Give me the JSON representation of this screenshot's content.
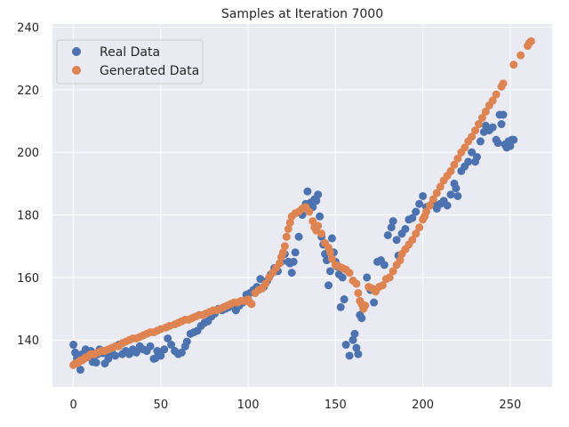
{
  "chart_data": {
    "type": "scatter",
    "title": "Samples at Iteration 7000",
    "xlabel": "",
    "ylabel": "",
    "xlim": [
      -12,
      274
    ],
    "ylim": [
      125,
      241
    ],
    "xticks": [
      0,
      50,
      100,
      150,
      200,
      250
    ],
    "yticks": [
      140,
      160,
      180,
      200,
      220,
      240
    ],
    "grid": true,
    "legend_position": "top-left",
    "series": [
      {
        "name": "Real Data",
        "color": "#4c72b0",
        "points": [
          [
            0,
            138.5
          ],
          [
            1,
            136.0
          ],
          [
            2,
            134.2
          ],
          [
            3,
            133.0
          ],
          [
            4,
            130.5
          ],
          [
            5,
            135.5
          ],
          [
            6,
            134.0
          ],
          [
            7,
            137.0
          ],
          [
            8,
            136.0
          ],
          [
            9,
            134.5
          ],
          [
            10,
            136.5
          ],
          [
            11,
            133.0
          ],
          [
            12,
            135.0
          ],
          [
            13,
            132.8
          ],
          [
            14,
            135.5
          ],
          [
            15,
            137.0
          ],
          [
            16,
            136.5
          ],
          [
            17,
            135.8
          ],
          [
            18,
            132.5
          ],
          [
            19,
            136.0
          ],
          [
            20,
            134.0
          ],
          [
            22,
            136.0
          ],
          [
            24,
            135.0
          ],
          [
            26,
            138.5
          ],
          [
            28,
            135.5
          ],
          [
            30,
            136.5
          ],
          [
            32,
            135.5
          ],
          [
            34,
            137.0
          ],
          [
            36,
            136.0
          ],
          [
            38,
            138.0
          ],
          [
            40,
            137.0
          ],
          [
            42,
            136.5
          ],
          [
            44,
            138.0
          ],
          [
            46,
            134.0
          ],
          [
            47,
            134.2
          ],
          [
            48,
            136.5
          ],
          [
            50,
            135.0
          ],
          [
            52,
            137.0
          ],
          [
            54,
            140.5
          ],
          [
            56,
            138.5
          ],
          [
            58,
            136.5
          ],
          [
            60,
            135.5
          ],
          [
            62,
            136.0
          ],
          [
            64,
            138.0
          ],
          [
            65,
            139.5
          ],
          [
            67,
            142.0
          ],
          [
            69,
            142.5
          ],
          [
            71,
            143.0
          ],
          [
            73,
            144.5
          ],
          [
            75,
            145.5
          ],
          [
            77,
            146.0
          ],
          [
            79,
            147.5
          ],
          [
            81,
            148.5
          ],
          [
            83,
            150.0
          ],
          [
            85,
            149.5
          ],
          [
            87,
            150.0
          ],
          [
            89,
            150.5
          ],
          [
            91,
            151.5
          ],
          [
            93,
            149.5
          ],
          [
            95,
            151.0
          ],
          [
            97,
            152.0
          ],
          [
            99,
            154.5
          ],
          [
            101,
            155.0
          ],
          [
            103,
            156.0
          ],
          [
            105,
            157.0
          ],
          [
            107,
            159.5
          ],
          [
            109,
            157.0
          ],
          [
            111,
            159.0
          ],
          [
            113,
            161.0
          ],
          [
            115,
            163.0
          ],
          [
            117,
            162.0
          ],
          [
            119,
            165.0
          ],
          [
            121,
            167.5
          ],
          [
            123,
            165.0
          ],
          [
            124,
            164.5
          ],
          [
            125,
            161.5
          ],
          [
            126,
            165.0
          ],
          [
            127,
            168.0
          ],
          [
            129,
            173.0
          ],
          [
            131,
            180.0
          ],
          [
            133,
            183.5
          ],
          [
            134,
            187.5
          ],
          [
            136,
            184.0
          ],
          [
            137,
            182.5
          ],
          [
            138,
            185.0
          ],
          [
            139,
            184.5
          ],
          [
            140,
            186.5
          ],
          [
            141,
            179.5
          ],
          [
            142,
            173.0
          ],
          [
            143,
            170.5
          ],
          [
            144,
            167.5
          ],
          [
            145,
            165.5
          ],
          [
            146,
            157.5
          ],
          [
            147,
            162.0
          ],
          [
            148,
            172.5
          ],
          [
            149,
            168.0
          ],
          [
            150,
            165.0
          ],
          [
            151,
            163.5
          ],
          [
            152,
            161.0
          ],
          [
            153,
            150.5
          ],
          [
            154,
            160.0
          ],
          [
            155,
            153.0
          ],
          [
            156,
            138.5
          ],
          [
            158,
            135.0
          ],
          [
            160,
            140.0
          ],
          [
            161,
            142.0
          ],
          [
            162,
            137.5
          ],
          [
            163,
            135.5
          ],
          [
            164,
            148.0
          ],
          [
            165,
            147.0
          ],
          [
            166,
            150.5
          ],
          [
            168,
            160.0
          ],
          [
            170,
            156.0
          ],
          [
            172,
            152.0
          ],
          [
            174,
            165.0
          ],
          [
            176,
            165.5
          ],
          [
            178,
            164.0
          ],
          [
            180,
            173.5
          ],
          [
            182,
            176.0
          ],
          [
            183,
            178.0
          ],
          [
            185,
            172.0
          ],
          [
            186,
            167.0
          ],
          [
            188,
            174.0
          ],
          [
            190,
            175.5
          ],
          [
            192,
            178.5
          ],
          [
            194,
            179.0
          ],
          [
            196,
            181.0
          ],
          [
            198,
            183.5
          ],
          [
            200,
            186.0
          ],
          [
            202,
            182.5
          ],
          [
            204,
            183.0
          ],
          [
            206,
            184.0
          ],
          [
            208,
            182.0
          ],
          [
            210,
            183.5
          ],
          [
            212,
            184.5
          ],
          [
            214,
            183.0
          ],
          [
            216,
            186.5
          ],
          [
            218,
            190.0
          ],
          [
            219,
            188.5
          ],
          [
            220,
            186.0
          ],
          [
            222,
            194.0
          ],
          [
            224,
            195.5
          ],
          [
            226,
            197.0
          ],
          [
            228,
            200.0
          ],
          [
            230,
            197.0
          ],
          [
            231,
            198.5
          ],
          [
            233,
            203.5
          ],
          [
            235,
            206.5
          ],
          [
            236,
            208.5
          ],
          [
            238,
            207.0
          ],
          [
            240,
            208.0
          ],
          [
            242,
            204.0
          ],
          [
            243,
            203.0
          ],
          [
            244,
            212.0
          ],
          [
            245,
            209.0
          ],
          [
            246,
            212.0
          ],
          [
            247,
            202.5
          ],
          [
            248,
            201.5
          ],
          [
            249,
            203.5
          ],
          [
            250,
            202.0
          ],
          [
            251,
            204.0
          ],
          [
            252,
            204.0
          ]
        ]
      },
      {
        "name": "Generated Data",
        "color": "#dd8452",
        "points": [
          [
            0,
            132.0
          ],
          [
            1,
            132.5
          ],
          [
            2,
            132.5
          ],
          [
            3,
            133.0
          ],
          [
            4,
            133.5
          ],
          [
            5,
            133.5
          ],
          [
            6,
            134.0
          ],
          [
            7,
            134.5
          ],
          [
            8,
            134.5
          ],
          [
            9,
            135.0
          ],
          [
            10,
            135.5
          ],
          [
            12,
            135.5
          ],
          [
            14,
            136.0
          ],
          [
            16,
            136.5
          ],
          [
            18,
            136.5
          ],
          [
            20,
            137.0
          ],
          [
            22,
            137.5
          ],
          [
            24,
            138.0
          ],
          [
            26,
            138.0
          ],
          [
            28,
            139.0
          ],
          [
            30,
            139.5
          ],
          [
            32,
            140.0
          ],
          [
            34,
            140.5
          ],
          [
            36,
            140.5
          ],
          [
            38,
            141.0
          ],
          [
            40,
            141.5
          ],
          [
            42,
            142.0
          ],
          [
            44,
            142.5
          ],
          [
            46,
            142.5
          ],
          [
            48,
            143.0
          ],
          [
            50,
            143.5
          ],
          [
            53,
            144.0
          ],
          [
            55,
            144.5
          ],
          [
            58,
            145.0
          ],
          [
            60,
            145.5
          ],
          [
            62,
            146.0
          ],
          [
            64,
            146.5
          ],
          [
            66,
            146.5
          ],
          [
            68,
            147.0
          ],
          [
            70,
            147.5
          ],
          [
            72,
            148.0
          ],
          [
            74,
            148.0
          ],
          [
            76,
            148.5
          ],
          [
            78,
            149.0
          ],
          [
            80,
            149.5
          ],
          [
            82,
            149.5
          ],
          [
            84,
            150.0
          ],
          [
            86,
            150.5
          ],
          [
            88,
            151.0
          ],
          [
            90,
            151.5
          ],
          [
            92,
            152.0
          ],
          [
            94,
            152.0
          ],
          [
            96,
            152.5
          ],
          [
            98,
            152.5
          ],
          [
            100,
            153.0
          ],
          [
            101,
            152.0
          ],
          [
            102,
            151.5
          ],
          [
            104,
            155.0
          ],
          [
            106,
            156.0
          ],
          [
            108,
            156.5
          ],
          [
            110,
            158.0
          ],
          [
            112,
            160.0
          ],
          [
            114,
            161.5
          ],
          [
            116,
            163.0
          ],
          [
            118,
            164.5
          ],
          [
            119,
            166.5
          ],
          [
            120,
            168.0
          ],
          [
            121,
            170.0
          ],
          [
            122,
            173.0
          ],
          [
            123,
            175.5
          ],
          [
            124,
            177.5
          ],
          [
            125,
            179.5
          ],
          [
            127,
            180.5
          ],
          [
            129,
            181.0
          ],
          [
            131,
            182.0
          ],
          [
            133,
            182.5
          ],
          [
            135,
            181.0
          ],
          [
            137,
            178.0
          ],
          [
            138,
            176.0
          ],
          [
            139,
            175.0
          ],
          [
            140,
            176.5
          ],
          [
            142,
            174.0
          ],
          [
            144,
            171.0
          ],
          [
            146,
            169.5
          ],
          [
            147,
            168.0
          ],
          [
            148,
            166.0
          ],
          [
            150,
            164.0
          ],
          [
            152,
            163.5
          ],
          [
            154,
            163.0
          ],
          [
            156,
            162.5
          ],
          [
            158,
            161.5
          ],
          [
            160,
            159.0
          ],
          [
            162,
            158.0
          ],
          [
            163,
            155.0
          ],
          [
            164,
            152.5
          ],
          [
            165,
            151.5
          ],
          [
            166,
            150.0
          ],
          [
            167,
            151.0
          ],
          [
            169,
            157.0
          ],
          [
            171,
            156.5
          ],
          [
            173,
            155.5
          ],
          [
            175,
            157.0
          ],
          [
            177,
            157.5
          ],
          [
            179,
            159.5
          ],
          [
            181,
            160.0
          ],
          [
            183,
            162.0
          ],
          [
            185,
            164.0
          ],
          [
            187,
            165.5
          ],
          [
            188,
            167.5
          ],
          [
            190,
            169.0
          ],
          [
            192,
            170.5
          ],
          [
            194,
            172.0
          ],
          [
            196,
            174.0
          ],
          [
            198,
            176.0
          ],
          [
            200,
            178.5
          ],
          [
            201,
            179.5
          ],
          [
            202,
            181.0
          ],
          [
            204,
            183.0
          ],
          [
            206,
            185.0
          ],
          [
            208,
            187.0
          ],
          [
            210,
            189.0
          ],
          [
            212,
            191.0
          ],
          [
            214,
            192.5
          ],
          [
            216,
            194.0
          ],
          [
            218,
            196.0
          ],
          [
            220,
            198.0
          ],
          [
            222,
            200.0
          ],
          [
            224,
            201.5
          ],
          [
            226,
            203.5
          ],
          [
            228,
            205.0
          ],
          [
            230,
            207.0
          ],
          [
            232,
            209.0
          ],
          [
            234,
            211.0
          ],
          [
            236,
            213.0
          ],
          [
            238,
            215.0
          ],
          [
            240,
            216.5
          ],
          [
            242,
            218.5
          ],
          [
            245,
            221.0
          ],
          [
            246,
            222.0
          ],
          [
            252,
            228.0
          ],
          [
            256,
            231.0
          ],
          [
            260,
            234.0
          ],
          [
            261,
            235.0
          ],
          [
            262,
            235.5
          ]
        ]
      }
    ]
  }
}
